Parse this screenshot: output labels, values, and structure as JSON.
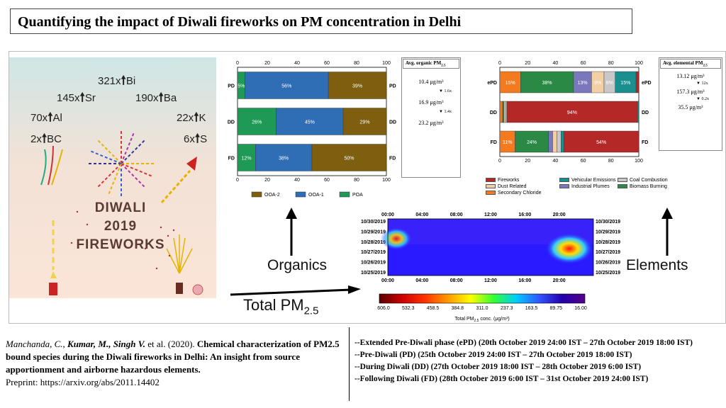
{
  "title": "Quantifying the impact of Diwali fireworks on PM concentration in Delhi",
  "cartoon": {
    "elements": [
      {
        "factor": "321x",
        "symbol": "Bi"
      },
      {
        "factor": "145x",
        "symbol": "Sr"
      },
      {
        "factor": "190x",
        "symbol": "Ba"
      },
      {
        "factor": "70x",
        "symbol": "Al"
      },
      {
        "factor": "22x",
        "symbol": "K"
      },
      {
        "factor": "2x",
        "symbol": "BC"
      },
      {
        "factor": "6x",
        "symbol": "S"
      }
    ],
    "arrow_icon": "up-arrow",
    "label_line1": "DIWALI",
    "label_line2": "2019",
    "label_line3": "FIREWORKS"
  },
  "organic_chart": {
    "x_ticks": [
      "0",
      "20",
      "40",
      "60",
      "80",
      "100"
    ],
    "rows": [
      {
        "label": "PD",
        "segments": [
          {
            "name": "POA",
            "value": 5,
            "label": "5%"
          },
          {
            "name": "OOA-1",
            "value": 56,
            "label": "56%"
          },
          {
            "name": "OOA-2",
            "value": 39,
            "label": "39%"
          }
        ]
      },
      {
        "label": "DD",
        "segments": [
          {
            "name": "POA",
            "value": 26,
            "label": "26%"
          },
          {
            "name": "OOA-1",
            "value": 45,
            "label": "45%"
          },
          {
            "name": "OOA-2",
            "value": 29,
            "label": "29%"
          }
        ]
      },
      {
        "label": "FD",
        "segments": [
          {
            "name": "POA",
            "value": 12,
            "label": "12%"
          },
          {
            "name": "OOA-1",
            "value": 38,
            "label": "38%"
          },
          {
            "name": "OOA-2",
            "value": 50,
            "label": "50%"
          }
        ]
      }
    ],
    "legend": [
      "OOA-2",
      "OOA-1",
      "POA"
    ]
  },
  "organic_box": {
    "header": "Avg. organic PM",
    "header_sub": "2.5",
    "values": [
      "10.4 μg/m³",
      "16.9 μg/m³",
      "23.2 μg/m³"
    ],
    "factors": [
      "1.6x",
      "1.4x"
    ]
  },
  "elemental_chart": {
    "x_ticks": [
      "0",
      "20",
      "40",
      "60",
      "80",
      "100"
    ],
    "rows": [
      {
        "label": "ePD",
        "segments": [
          {
            "name": "Secondary Chloride",
            "value": 15,
            "label": "15%"
          },
          {
            "name": "Biomass Burning",
            "value": 38,
            "label": "38%"
          },
          {
            "name": "Industrial Plumes",
            "value": 13,
            "label": "13%"
          },
          {
            "name": "Dust Related",
            "value": 9,
            "label": "9%"
          },
          {
            "name": "Coal Combustion",
            "value": 8,
            "label": "8%"
          },
          {
            "name": "Vehicular Emissions",
            "value": 15,
            "label": "15%"
          },
          {
            "name": "Fireworks",
            "value": 2,
            "label": ""
          }
        ]
      },
      {
        "label": "DD",
        "segments": [
          {
            "name": "Secondary Chloride",
            "value": 2,
            "label": ""
          },
          {
            "name": "Biomass Burning",
            "value": 1,
            "label": ""
          },
          {
            "name": "Dust Related",
            "value": 1,
            "label": ""
          },
          {
            "name": "Coal Combustion",
            "value": 1,
            "label": ""
          },
          {
            "name": "Fireworks",
            "value": 94,
            "label": "94%"
          },
          {
            "name": "Vehicular Emissions",
            "value": 1,
            "label": ""
          }
        ]
      },
      {
        "label": "FD",
        "segments": [
          {
            "name": "Secondary Chloride",
            "value": 11,
            "label": "11%"
          },
          {
            "name": "Biomass Burning",
            "value": 24,
            "label": "24%"
          },
          {
            "name": "Industrial Plumes",
            "value": 3,
            "label": ""
          },
          {
            "name": "Dust Related",
            "value": 3,
            "label": ""
          },
          {
            "name": "Coal Combustion",
            "value": 3,
            "label": ""
          },
          {
            "name": "Vehicular Emissions",
            "value": 2,
            "label": ""
          },
          {
            "name": "Fireworks",
            "value": 54,
            "label": "54%"
          }
        ]
      }
    ],
    "legend": [
      "Fireworks",
      "Vehicular Emissions",
      "Coal Combustion",
      "Dust Related",
      "Industrial Plumes",
      "Biomass Burning",
      "Secondary Chloride"
    ]
  },
  "elemental_box": {
    "header": "Avg. elemental PM",
    "header_sub": "2.5",
    "values": [
      "13.12 μg/m³",
      "157.3 μg/m³",
      "35.5 μg/m³"
    ],
    "factors": [
      "12x",
      "0.2x"
    ]
  },
  "heatmap": {
    "time_ticks": [
      "00:00",
      "04:00",
      "08:00",
      "12:00",
      "16:00",
      "20:00"
    ],
    "dates": [
      "10/30/2019",
      "10/29/2019",
      "10/28/2019",
      "10/27/2019",
      "10/26/2019",
      "10/25/2019"
    ],
    "colorbar_ticks": [
      "606.0",
      "532.3",
      "458.5",
      "384.8",
      "311.0",
      "237.3",
      "163.5",
      "89.75",
      "16.00"
    ],
    "colorbar_label": "Total PM",
    "colorbar_label_sub": "2.5",
    "colorbar_label_tail": " conc. (μg/m³)"
  },
  "labels": {
    "organics": "Organics",
    "elements": "Elements",
    "total_pm": "Total PM",
    "total_pm_sub": "2.5"
  },
  "citation": {
    "authors_plain": "Manchanda, C., ",
    "authors_bold": "Kumar, M., Singh V.",
    "etal": " et al. (2020). ",
    "title": "Chemical characterization of PM2.5 bound species during the Diwali fireworks in Delhi: An insight from source apportionment and airborne hazardous elements.",
    "preprint": "Preprint: https://arxiv.org/abs/2011.14402"
  },
  "periods": [
    "--Extended Pre-Diwali phase (ePD) (20th October 2019 24:00 IST – 27th October 2019 18:00 IST)",
    "--Pre-Diwali (PD) (25th October 2019 24:00 IST – 27th October 2019 18:00 IST)",
    "--During Diwali (DD) (27th October 2019 18:00 IST – 28th October 2019 6:00 IST)",
    "--Following Diwali (FD) (28th October 2019 6:00 IST – 31st October 2019 24:00 IST)"
  ],
  "colors": {
    "POA": "#1e9a55",
    "OOA-1": "#2f6db5",
    "OOA-2": "#7e5e0f",
    "Fireworks": "#b52828",
    "Vehicular Emissions": "#1b8f8f",
    "Coal Combustion": "#c8c8c8",
    "Dust Related": "#f3cfa6",
    "Industrial Plumes": "#7a78bd",
    "Biomass Burning": "#2a8a45",
    "Secondary Chloride": "#f47a1f"
  }
}
